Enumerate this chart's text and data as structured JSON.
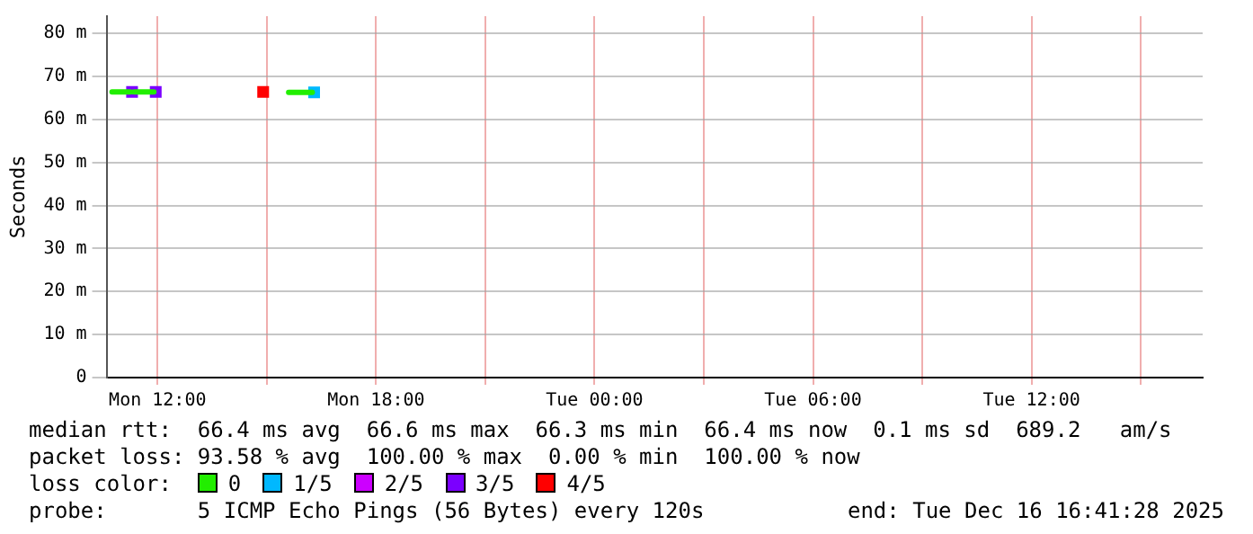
{
  "chart_data": {
    "type": "line",
    "ylabel": "Seconds",
    "legend_title": "loss color:",
    "legend": "bottom",
    "grid": true,
    "line_style": "solid",
    "xlim": [
      "2025-12-15T10:36",
      "2025-12-16T16:42"
    ],
    "xticks": [
      {
        "value": "2025-12-15T12:00",
        "label": "Mon 12:00"
      },
      {
        "value": "2025-12-15T15:00",
        "label": null
      },
      {
        "value": "2025-12-15T18:00",
        "label": "Mon 18:00"
      },
      {
        "value": "2025-12-15T21:00",
        "label": null
      },
      {
        "value": "2025-12-16T00:00",
        "label": "Tue 00:00"
      },
      {
        "value": "2025-12-16T03:00",
        "label": null
      },
      {
        "value": "2025-12-16T06:00",
        "label": "Tue 06:00"
      },
      {
        "value": "2025-12-16T09:00",
        "label": null
      },
      {
        "value": "2025-12-16T12:00",
        "label": "Tue 12:00"
      },
      {
        "value": "2025-12-16T15:00",
        "label": null
      }
    ],
    "ylim": [
      0,
      84
    ],
    "yticks": [
      0,
      {
        "value": 10,
        "label": "10 m"
      },
      {
        "value": 20,
        "label": "20 m"
      },
      {
        "value": 30,
        "label": "30 m"
      },
      {
        "value": 40,
        "label": "40 m"
      },
      {
        "value": 50,
        "label": "50 m"
      },
      {
        "value": 60,
        "label": "60 m"
      },
      {
        "value": 70,
        "label": "70 m"
      },
      {
        "value": 80,
        "label": "80 m"
      }
    ],
    "series": [
      {
        "name": "0",
        "color": "#22ee00",
        "x": [
          "2025-12-15T10:45",
          "2025-12-15T11:15",
          null,
          "2025-12-15T11:21",
          "2025-12-15T11:54",
          null,
          "2025-12-15T15:36",
          "2025-12-15T16:15"
        ],
        "values": [
          66.4,
          66.4,
          null,
          66.4,
          66.4,
          null,
          66.3,
          66.3
        ]
      },
      {
        "name": "1/5",
        "type": "scatter",
        "color": "#00b8ff",
        "x": [
          "2025-12-15T16:18"
        ],
        "values": [
          66.3
        ]
      },
      {
        "name": "2/5",
        "color": "#cc00ff"
      },
      {
        "name": "3/5",
        "type": "scatter",
        "color": "#7b00ff",
        "x": [
          "2025-12-15T11:18",
          "2025-12-15T11:57"
        ],
        "values": [
          66.4,
          66.4
        ]
      },
      {
        "name": "4/5",
        "type": "scatter",
        "color": "#ff0000",
        "x": [
          "2025-12-15T14:54"
        ],
        "values": [
          66.4
        ]
      }
    ],
    "annotations": [
      "median rtt:  66.4 ms avg  66.6 ms max  66.3 ms min  66.4 ms now  0.1 ms sd  689.2   am/s",
      "packet loss: 93.58 % avg  100.00 % max  0.00 % min  100.00 % now",
      "probe:       5 ICMP Echo Pings (56 Bytes) every 120s",
      "end: Tue Dec 16 16:41:28 2025"
    ]
  }
}
